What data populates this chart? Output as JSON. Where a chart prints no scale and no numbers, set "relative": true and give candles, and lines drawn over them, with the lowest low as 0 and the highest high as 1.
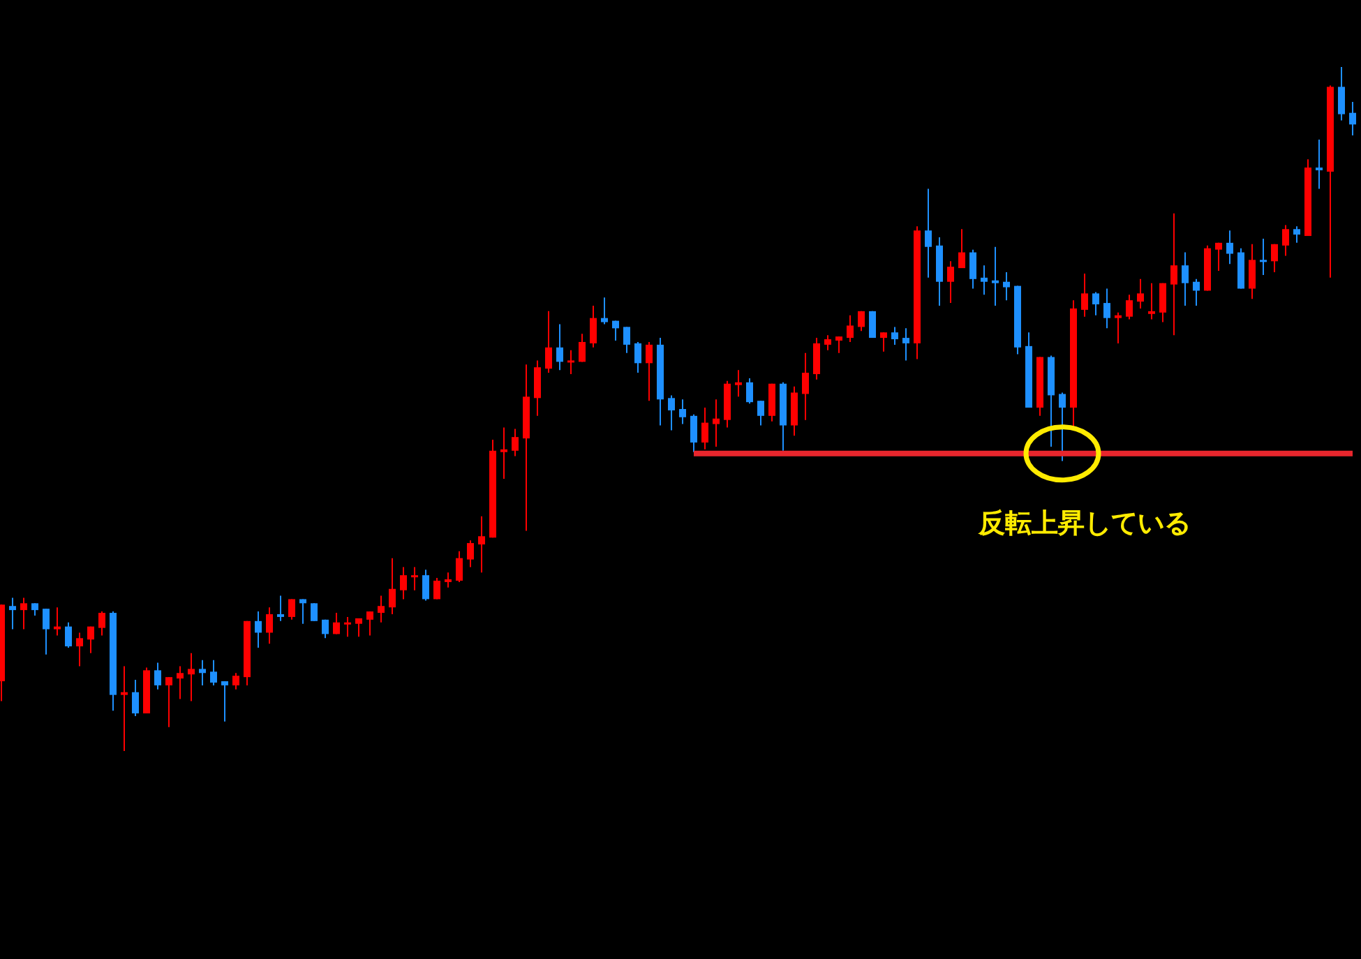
{
  "chart_data": {
    "type": "candlestick",
    "relative": true,
    "categories": [
      null,
      null,
      null,
      null,
      null,
      null,
      null,
      null,
      null,
      null,
      null,
      null,
      null,
      null,
      null,
      null,
      null,
      null,
      null,
      null,
      null,
      null,
      null,
      null,
      null,
      null,
      null,
      null,
      null,
      null,
      null,
      null,
      null,
      null,
      null,
      null,
      null,
      null,
      null,
      null,
      null,
      null,
      null,
      null,
      null,
      null,
      null,
      null,
      null,
      null,
      null,
      null,
      null,
      null,
      null,
      null,
      null,
      null,
      null,
      null,
      null,
      null,
      null,
      null,
      null,
      null,
      null,
      null,
      null,
      null,
      null,
      null,
      null,
      null,
      null,
      null,
      null,
      null,
      null,
      null,
      null,
      null,
      null,
      null,
      null,
      null,
      null,
      null,
      null,
      null,
      null,
      null,
      null,
      null,
      null,
      null,
      null,
      null,
      null,
      null,
      null,
      null,
      null,
      null,
      null,
      null,
      null,
      null,
      null,
      null,
      null,
      null,
      null,
      null,
      null,
      null,
      null,
      null,
      null,
      null,
      null,
      null
    ],
    "ohlc": [
      [
        0.102,
        0.214,
        0.073,
        0.214
      ],
      [
        0.212,
        0.224,
        0.178,
        0.206
      ],
      [
        0.206,
        0.224,
        0.178,
        0.216
      ],
      [
        0.216,
        0.216,
        0.198,
        0.206
      ],
      [
        0.208,
        0.208,
        0.141,
        0.178
      ],
      [
        0.178,
        0.21,
        0.169,
        0.182
      ],
      [
        0.182,
        0.188,
        0.151,
        0.153
      ],
      [
        0.153,
        0.173,
        0.124,
        0.165
      ],
      [
        0.163,
        0.182,
        0.143,
        0.182
      ],
      [
        0.18,
        0.204,
        0.169,
        0.202
      ],
      [
        0.202,
        0.204,
        0.059,
        0.082
      ],
      [
        0.082,
        0.124,
        0,
        0.086
      ],
      [
        0.086,
        0.104,
        0.051,
        0.055
      ],
      [
        0.055,
        0.122,
        0.055,
        0.118
      ],
      [
        0.118,
        0.129,
        0.09,
        0.096
      ],
      [
        0.096,
        0.108,
        0.035,
        0.108
      ],
      [
        0.106,
        0.124,
        0.076,
        0.114
      ],
      [
        0.112,
        0.143,
        0.073,
        0.12
      ],
      [
        0.12,
        0.133,
        0.096,
        0.114
      ],
      [
        0.116,
        0.133,
        0.096,
        0.1
      ],
      [
        0.102,
        0.102,
        0.043,
        0.096
      ],
      [
        0.096,
        0.114,
        0.09,
        0.11
      ],
      [
        0.108,
        0.19,
        0.096,
        0.19
      ],
      [
        0.19,
        0.204,
        0.151,
        0.173
      ],
      [
        0.173,
        0.21,
        0.157,
        0.2
      ],
      [
        0.2,
        0.227,
        0.19,
        0.196
      ],
      [
        0.196,
        0.222,
        0.192,
        0.222
      ],
      [
        0.222,
        0.222,
        0.186,
        0.216
      ],
      [
        0.216,
        0.216,
        0.19,
        0.19
      ],
      [
        0.192,
        0.192,
        0.165,
        0.171
      ],
      [
        0.171,
        0.202,
        0.171,
        0.188
      ],
      [
        0.186,
        0.196,
        0.167,
        0.188
      ],
      [
        0.186,
        0.194,
        0.167,
        0.194
      ],
      [
        0.192,
        0.204,
        0.169,
        0.204
      ],
      [
        0.202,
        0.227,
        0.188,
        0.212
      ],
      [
        0.21,
        0.282,
        0.2,
        0.237
      ],
      [
        0.235,
        0.269,
        0.222,
        0.257
      ],
      [
        0.255,
        0.269,
        0.235,
        0.257
      ],
      [
        0.257,
        0.265,
        0.22,
        0.222
      ],
      [
        0.222,
        0.253,
        0.222,
        0.249
      ],
      [
        0.247,
        0.261,
        0.239,
        0.251
      ],
      [
        0.249,
        0.292,
        0.247,
        0.282
      ],
      [
        0.28,
        0.308,
        0.269,
        0.304
      ],
      [
        0.302,
        0.343,
        0.261,
        0.314
      ],
      [
        0.312,
        0.455,
        0.312,
        0.439
      ],
      [
        0.437,
        0.473,
        0.398,
        0.441
      ],
      [
        0.439,
        0.471,
        0.431,
        0.459
      ],
      [
        0.457,
        0.565,
        0.322,
        0.518
      ],
      [
        0.516,
        0.571,
        0.49,
        0.561
      ],
      [
        0.559,
        0.643,
        0.553,
        0.59
      ],
      [
        0.59,
        0.624,
        0.557,
        0.569
      ],
      [
        0.569,
        0.586,
        0.551,
        0.571
      ],
      [
        0.569,
        0.61,
        0.569,
        0.598
      ],
      [
        0.596,
        0.651,
        0.59,
        0.633
      ],
      [
        0.633,
        0.663,
        0.624,
        0.627
      ],
      [
        0.629,
        0.629,
        0.6,
        0.618
      ],
      [
        0.62,
        0.62,
        0.582,
        0.594
      ],
      [
        0.596,
        0.598,
        0.553,
        0.567
      ],
      [
        0.567,
        0.598,
        0.512,
        0.594
      ],
      [
        0.594,
        0.604,
        0.476,
        0.514
      ],
      [
        0.516,
        0.52,
        0.469,
        0.498
      ],
      [
        0.5,
        0.514,
        0.478,
        0.488
      ],
      [
        0.49,
        0.492,
        0.437,
        0.451
      ],
      [
        0.451,
        0.502,
        0.441,
        0.48
      ],
      [
        0.478,
        0.514,
        0.445,
        0.486
      ],
      [
        0.484,
        0.541,
        0.473,
        0.537
      ],
      [
        0.535,
        0.557,
        0.518,
        0.539
      ],
      [
        0.539,
        0.545,
        0.508,
        0.51
      ],
      [
        0.512,
        0.512,
        0.476,
        0.49
      ],
      [
        0.49,
        0.537,
        0.482,
        0.537
      ],
      [
        0.537,
        0.539,
        0.439,
        0.476
      ],
      [
        0.476,
        0.533,
        0.461,
        0.524
      ],
      [
        0.522,
        0.582,
        0.484,
        0.553
      ],
      [
        0.551,
        0.604,
        0.543,
        0.596
      ],
      [
        0.594,
        0.608,
        0.586,
        0.602
      ],
      [
        0.6,
        0.606,
        0.582,
        0.606
      ],
      [
        0.604,
        0.637,
        0.598,
        0.622
      ],
      [
        0.62,
        0.643,
        0.614,
        0.643
      ],
      [
        0.643,
        0.643,
        0.604,
        0.604
      ],
      [
        0.604,
        0.612,
        0.584,
        0.612
      ],
      [
        0.612,
        0.62,
        0.594,
        0.602
      ],
      [
        0.604,
        0.618,
        0.571,
        0.596
      ],
      [
        0.596,
        0.767,
        0.573,
        0.761
      ],
      [
        0.761,
        0.822,
        0.692,
        0.737
      ],
      [
        0.739,
        0.751,
        0.651,
        0.686
      ],
      [
        0.686,
        0.716,
        0.655,
        0.708
      ],
      [
        0.706,
        0.763,
        0.706,
        0.729
      ],
      [
        0.729,
        0.733,
        0.676,
        0.69
      ],
      [
        0.692,
        0.71,
        0.667,
        0.686
      ],
      [
        0.688,
        0.737,
        0.651,
        0.684
      ],
      [
        0.686,
        0.7,
        0.659,
        0.678
      ],
      [
        0.68,
        0.68,
        0.58,
        0.59
      ],
      [
        0.592,
        0.612,
        0.502,
        0.502
      ],
      [
        0.502,
        0.576,
        0.49,
        0.576
      ],
      [
        0.576,
        0.578,
        0.445,
        0.52
      ],
      [
        0.522,
        0.524,
        0.424,
        0.502
      ],
      [
        0.502,
        0.659,
        0.471,
        0.647
      ],
      [
        0.645,
        0.698,
        0.635,
        0.669
      ],
      [
        0.669,
        0.671,
        0.637,
        0.653
      ],
      [
        0.655,
        0.676,
        0.618,
        0.633
      ],
      [
        0.633,
        0.641,
        0.596,
        0.637
      ],
      [
        0.635,
        0.667,
        0.631,
        0.659
      ],
      [
        0.657,
        0.69,
        0.647,
        0.669
      ],
      [
        0.639,
        0.684,
        0.631,
        0.643
      ],
      [
        0.641,
        0.684,
        0.627,
        0.684
      ],
      [
        0.682,
        0.786,
        0.608,
        0.71
      ],
      [
        0.71,
        0.729,
        0.651,
        0.684
      ],
      [
        0.686,
        0.69,
        0.651,
        0.673
      ],
      [
        0.673,
        0.739,
        0.673,
        0.735
      ],
      [
        0.733,
        0.743,
        0.702,
        0.743
      ],
      [
        0.743,
        0.761,
        0.712,
        0.727
      ],
      [
        0.729,
        0.735,
        0.676,
        0.676
      ],
      [
        0.676,
        0.741,
        0.661,
        0.718
      ],
      [
        0.718,
        0.749,
        0.696,
        0.716
      ],
      [
        0.716,
        0.741,
        0.7,
        0.741
      ],
      [
        0.739,
        0.769,
        0.724,
        0.763
      ],
      [
        0.763,
        0.767,
        0.743,
        0.755
      ],
      [
        0.753,
        0.865,
        0.753,
        0.853
      ],
      [
        0.853,
        0.894,
        0.822,
        0.849
      ],
      [
        0.847,
        0.973,
        0.692,
        0.971
      ],
      [
        0.971,
        1,
        0.922,
        0.931
      ],
      [
        0.933,
        0.949,
        0.9,
        0.916
      ]
    ],
    "colors": [
      "#ff0000",
      "#1e90ff",
      "#ff0000",
      "#1e90ff",
      "#1e90ff",
      "#ff0000",
      "#1e90ff",
      "#ff0000",
      "#ff0000",
      "#ff0000",
      "#1e90ff",
      "#ff0000",
      "#1e90ff",
      "#ff0000",
      "#1e90ff",
      "#ff0000",
      "#ff0000",
      "#ff0000",
      "#1e90ff",
      "#1e90ff",
      "#1e90ff",
      "#ff0000",
      "#ff0000",
      "#1e90ff",
      "#ff0000",
      "#1e90ff",
      "#ff0000",
      "#1e90ff",
      "#1e90ff",
      "#1e90ff",
      "#ff0000",
      "#ff0000",
      "#ff0000",
      "#ff0000",
      "#ff0000",
      "#ff0000",
      "#ff0000",
      "#ff0000",
      "#1e90ff",
      "#ff0000",
      "#ff0000",
      "#ff0000",
      "#ff0000",
      "#ff0000",
      "#ff0000",
      "#ff0000",
      "#ff0000",
      "#ff0000",
      "#ff0000",
      "#ff0000",
      "#1e90ff",
      "#ff0000",
      "#ff0000",
      "#ff0000",
      "#1e90ff",
      "#1e90ff",
      "#1e90ff",
      "#1e90ff",
      "#ff0000",
      "#1e90ff",
      "#1e90ff",
      "#1e90ff",
      "#1e90ff",
      "#ff0000",
      "#ff0000",
      "#ff0000",
      "#ff0000",
      "#1e90ff",
      "#1e90ff",
      "#ff0000",
      "#1e90ff",
      "#ff0000",
      "#ff0000",
      "#ff0000",
      "#ff0000",
      "#ff0000",
      "#ff0000",
      "#ff0000",
      "#1e90ff",
      "#ff0000",
      "#1e90ff",
      "#1e90ff",
      "#ff0000",
      "#1e90ff",
      "#1e90ff",
      "#ff0000",
      "#ff0000",
      "#1e90ff",
      "#1e90ff",
      "#1e90ff",
      "#1e90ff",
      "#1e90ff",
      "#1e90ff",
      "#ff0000",
      "#1e90ff",
      "#1e90ff",
      "#ff0000",
      "#ff0000",
      "#1e90ff",
      "#1e90ff",
      "#ff0000",
      "#ff0000",
      "#ff0000",
      "#ff0000",
      "#ff0000",
      "#ff0000",
      "#1e90ff",
      "#1e90ff",
      "#ff0000",
      "#ff0000",
      "#1e90ff",
      "#1e90ff",
      "#ff0000",
      "#1e90ff",
      "#ff0000",
      "#ff0000",
      "#1e90ff",
      "#ff0000",
      "#1e90ff",
      "#ff0000",
      "#1e90ff",
      "#1e90ff"
    ],
    "series": [
      {
        "type": "line",
        "color": "#e8262d",
        "values": [
          null,
          null,
          null,
          null,
          null,
          null,
          null,
          null,
          null,
          null,
          null,
          null,
          null,
          null,
          null,
          null,
          null,
          null,
          null,
          null,
          null,
          null,
          null,
          null,
          null,
          null,
          null,
          null,
          null,
          null,
          null,
          null,
          null,
          null,
          null,
          null,
          null,
          null,
          null,
          null,
          null,
          null,
          null,
          null,
          null,
          null,
          null,
          null,
          null,
          null,
          null,
          null,
          null,
          null,
          null,
          null,
          null,
          null,
          null,
          null,
          null,
          null,
          0.435,
          0.435,
          0.435,
          0.435,
          0.435,
          0.435,
          0.435,
          0.435,
          0.435,
          0.435,
          0.435,
          0.435,
          0.435,
          0.435,
          0.435,
          0.435,
          0.435,
          0.435,
          0.435,
          0.435,
          0.435,
          0.435,
          0.435,
          0.435,
          0.435,
          0.435,
          0.435,
          0.435,
          0.435,
          0.435,
          0.435,
          0.435,
          0.435,
          0.435,
          0.435,
          0.435,
          0.435,
          0.435,
          0.435,
          0.435,
          0.435,
          0.435,
          0.435,
          0.435,
          0.435,
          0.435,
          0.435,
          0.435,
          0.435,
          0.435,
          0.435,
          0.435,
          0.435,
          0.435,
          0.435,
          0.435,
          0.435,
          0.435,
          0.435,
          0.435
        ]
      }
    ],
    "annotations": [
      "反転上昇している"
    ]
  }
}
